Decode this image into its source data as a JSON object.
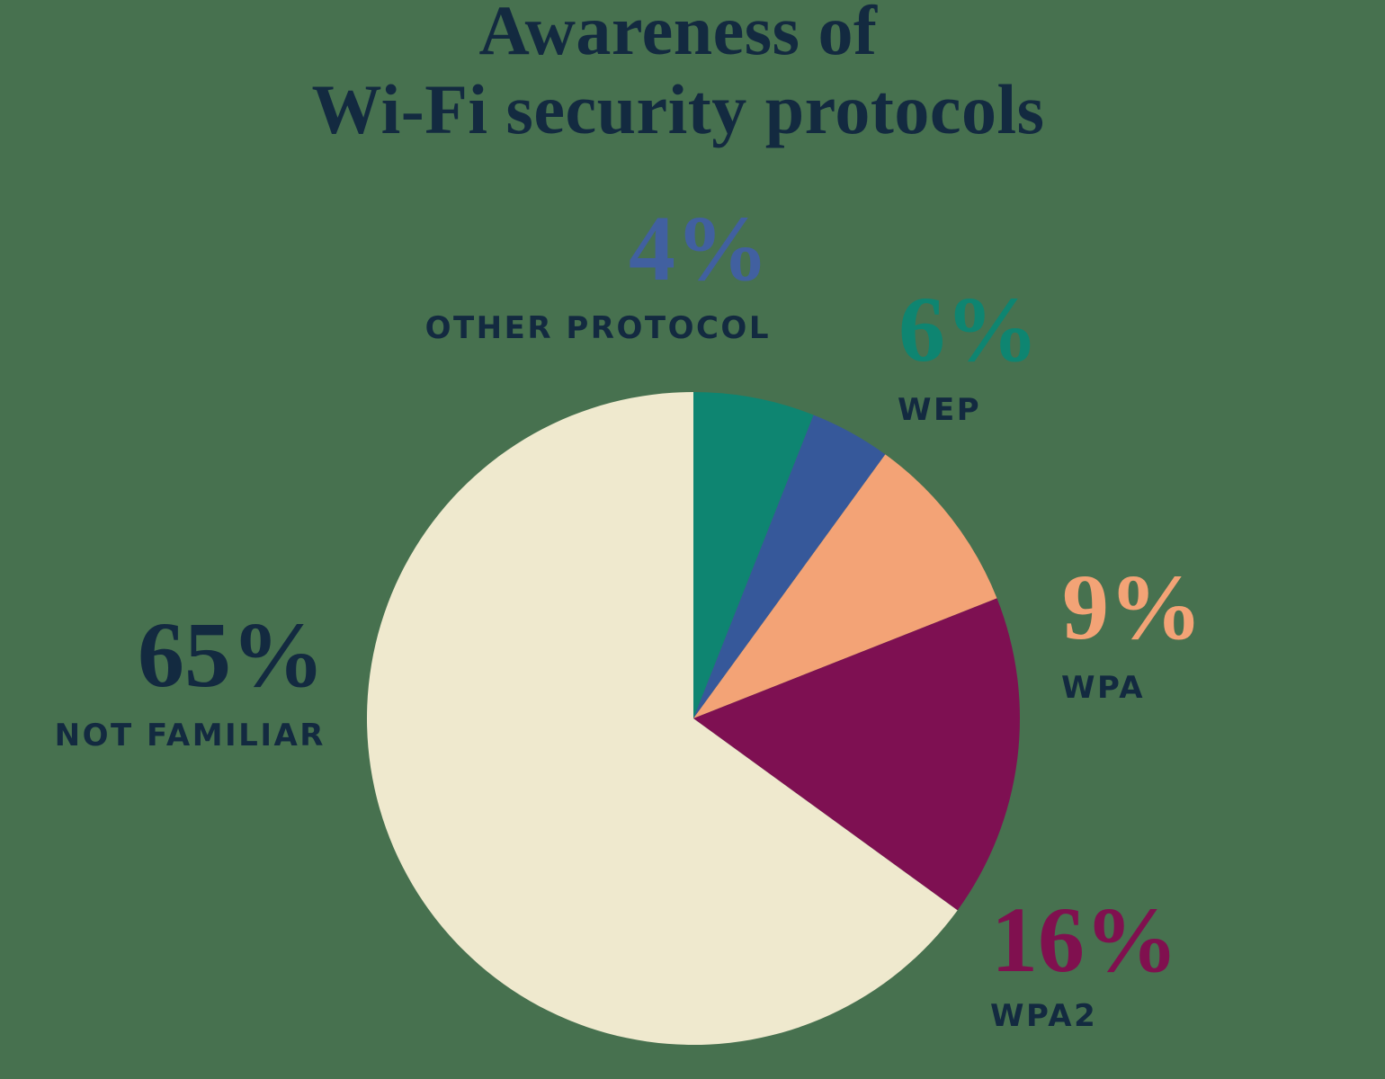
{
  "page": {
    "background_color": "#47714F",
    "text_color": "#132A40"
  },
  "title": {
    "line1": "Awareness of",
    "line2": "Wi-Fi security protocols"
  },
  "chart_data": {
    "type": "pie",
    "title": "Awareness of Wi-Fi security protocols",
    "start_angle_deg": 0,
    "direction": "clockwise",
    "total_pct": 100,
    "legend_position": "callout-labels",
    "slices": [
      {
        "label": "WEP",
        "value_pct": 6,
        "value_label": "6%",
        "color": "#0E8571",
        "label_color": "#0E8571"
      },
      {
        "label": "OTHER PROTOCOL",
        "value_pct": 4,
        "value_label": "4%",
        "color": "#36589A",
        "label_color": "#4160A0"
      },
      {
        "label": "WPA",
        "value_pct": 9,
        "value_label": "9%",
        "color": "#F3A376",
        "label_color": "#F3A376"
      },
      {
        "label": "WPA2",
        "value_pct": 16,
        "value_label": "16%",
        "color": "#7E1052",
        "label_color": "#80104F"
      },
      {
        "label": "NOT FAMILIAR",
        "value_pct": 65,
        "value_label": "65%",
        "color": "#EFE9CE",
        "label_color": "#132A40"
      }
    ]
  }
}
